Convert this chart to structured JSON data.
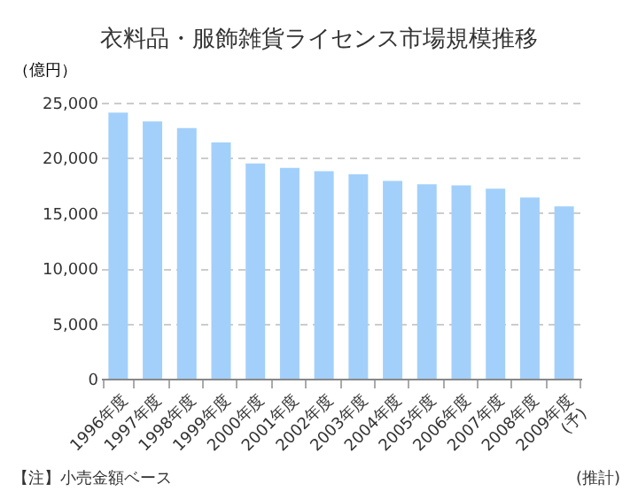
{
  "chart_data": {
    "type": "bar",
    "title": "衣料品・服飾雑貨ライセンス市場規模推移",
    "ylabel": "（億円）",
    "categories": [
      "1996年度",
      "1997年度",
      "1998年度",
      "1999年度",
      "2000年度",
      "2001年度",
      "2002年度",
      "2003年度",
      "2004年度",
      "2005年度",
      "2006年度",
      "2007年度",
      "2008年度",
      "2009年度\n(予)"
    ],
    "values": [
      24100,
      23300,
      22700,
      21400,
      19500,
      19100,
      18800,
      18500,
      17900,
      17600,
      17500,
      17200,
      16400,
      15600
    ],
    "color": "#a3d0fa",
    "ylim": [
      0,
      25000
    ],
    "yticks": [
      {
        "value": 0,
        "label": "0"
      },
      {
        "value": 5000,
        "label": "5,000"
      },
      {
        "value": 10000,
        "label": "10,000"
      },
      {
        "value": 15000,
        "label": "15,000"
      },
      {
        "value": 20000,
        "label": "20,000"
      },
      {
        "value": 25000,
        "label": "25,000"
      }
    ],
    "grid": "y",
    "annotations": [
      "【注】小売金額ベース",
      "(推計)"
    ]
  }
}
